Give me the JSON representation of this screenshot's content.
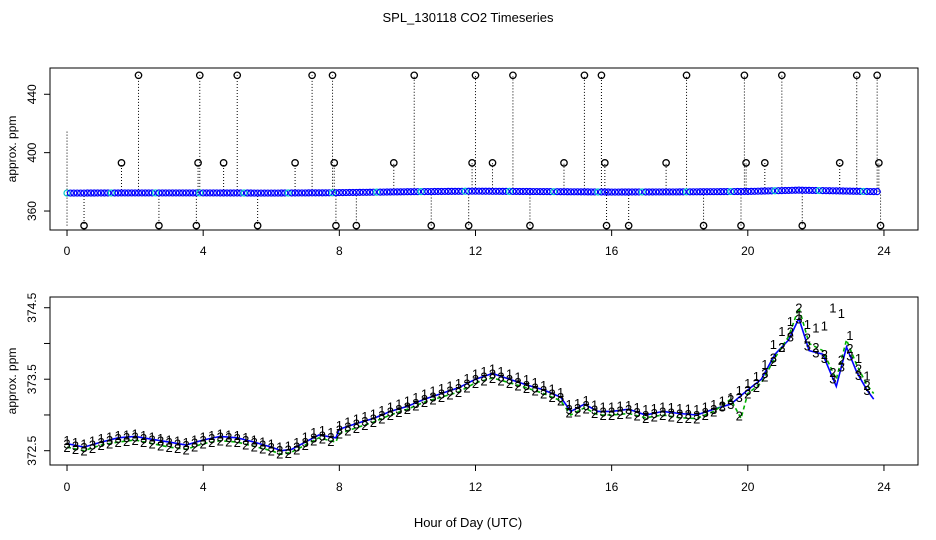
{
  "title": "SPL_130118  CO2 Timeseries",
  "xlabel": "Hour of Day (UTC)",
  "colors": {
    "frame": "#000000",
    "upper_series": "#0000ff",
    "upper_alt": "#00c8c8",
    "spike": "#000000",
    "s1": "#e00000",
    "s2": "#00b000",
    "s3": "#0000cc",
    "line3": "#0000ff",
    "line2": "#00b000"
  },
  "chart_data": [
    {
      "id": "upper",
      "type": "scatter",
      "ylabel": "approx. ppm",
      "xlim": [
        -0.5,
        25
      ],
      "ylim": [
        347,
        458
      ],
      "x_ticks": [
        0,
        4,
        8,
        12,
        16,
        20,
        24
      ],
      "y_ticks": [
        360,
        400,
        440
      ],
      "baseline": [
        {
          "x": 0,
          "y": 372.3
        },
        {
          "x": 2,
          "y": 372.4
        },
        {
          "x": 4,
          "y": 372.4
        },
        {
          "x": 6,
          "y": 372.3
        },
        {
          "x": 7.9,
          "y": 372.5
        },
        {
          "x": 8,
          "y": 372.6
        },
        {
          "x": 10,
          "y": 373.2
        },
        {
          "x": 12,
          "y": 373.6
        },
        {
          "x": 14,
          "y": 373.3
        },
        {
          "x": 16,
          "y": 373.0
        },
        {
          "x": 18,
          "y": 373.1
        },
        {
          "x": 20,
          "y": 373.4
        },
        {
          "x": 21.5,
          "y": 374.3
        },
        {
          "x": 23.7,
          "y": 373.3
        }
      ],
      "spikes_high": [
        2.1,
        3.9,
        5.0,
        7.2,
        7.8,
        10.2,
        12.0,
        13.1,
        15.2,
        15.7,
        18.2,
        19.9,
        21.0,
        23.2,
        23.8
      ],
      "spikes_mid": [
        1.6,
        3.85,
        4.6,
        6.7,
        7.85,
        9.6,
        11.9,
        12.5,
        14.6,
        15.8,
        17.6,
        19.95,
        20.5,
        22.7,
        23.85
      ],
      "spikes_low": [
        0.5,
        2.7,
        3.8,
        5.6,
        7.9,
        8.5,
        10.7,
        11.8,
        13.6,
        15.85,
        16.5,
        18.7,
        19.8,
        21.6,
        23.9
      ],
      "spike_values": {
        "high": 453,
        "mid": 393,
        "low": 350
      }
    },
    {
      "id": "lower",
      "type": "line",
      "ylabel": "approx. ppm",
      "xlim": [
        -0.5,
        25
      ],
      "ylim": [
        372.3,
        374.65
      ],
      "x_ticks": [
        0,
        4,
        8,
        12,
        16,
        20,
        24
      ],
      "y_ticks": [
        "372.5",
        "373.5",
        "374.5"
      ],
      "y_minor_ticks": [
        373,
        374
      ],
      "series": [
        {
          "name": "3",
          "points": [
            [
              0,
              372.6
            ],
            [
              0.5,
              372.55
            ],
            [
              1,
              372.62
            ],
            [
              1.5,
              372.68
            ],
            [
              2,
              372.7
            ],
            [
              2.5,
              372.66
            ],
            [
              3,
              372.62
            ],
            [
              3.5,
              372.58
            ],
            [
              4,
              372.65
            ],
            [
              4.5,
              372.7
            ],
            [
              5,
              372.68
            ],
            [
              5.5,
              372.62
            ],
            [
              6,
              372.55
            ],
            [
              6.3,
              372.5
            ],
            [
              6.6,
              372.52
            ],
            [
              7,
              372.62
            ],
            [
              7.4,
              372.72
            ],
            [
              7.9,
              372.68
            ],
            [
              8,
              372.8
            ],
            [
              8.5,
              372.88
            ],
            [
              9,
              372.95
            ],
            [
              9.5,
              373.05
            ],
            [
              10,
              373.12
            ],
            [
              10.5,
              373.22
            ],
            [
              11,
              373.3
            ],
            [
              11.5,
              373.38
            ],
            [
              12,
              373.5
            ],
            [
              12.5,
              373.58
            ],
            [
              13,
              373.5
            ],
            [
              13.5,
              373.42
            ],
            [
              14,
              373.35
            ],
            [
              14.5,
              373.25
            ],
            [
              14.8,
              373.05
            ],
            [
              15.2,
              373.15
            ],
            [
              15.6,
              373.05
            ],
            [
              16,
              373.05
            ],
            [
              16.5,
              373.08
            ],
            [
              17,
              373.0
            ],
            [
              17.5,
              373.05
            ],
            [
              18,
              373.02
            ],
            [
              18.5,
              373.0
            ],
            [
              19,
              373.08
            ],
            [
              19.5,
              373.15
            ],
            [
              20,
              373.35
            ],
            [
              20.4,
              373.5
            ],
            [
              20.8,
              373.85
            ],
            [
              21.2,
              374.05
            ],
            [
              21.5,
              374.35
            ],
            [
              21.8,
              373.9
            ],
            [
              22.2,
              373.85
            ],
            [
              22.6,
              373.4
            ],
            [
              22.9,
              373.95
            ],
            [
              23.2,
              373.6
            ],
            [
              23.5,
              373.35
            ],
            [
              23.7,
              373.22
            ]
          ]
        },
        {
          "name": "2",
          "points": [
            [
              0,
              372.55
            ],
            [
              0.5,
              372.5
            ],
            [
              1,
              372.58
            ],
            [
              1.5,
              372.62
            ],
            [
              2,
              372.65
            ],
            [
              2.5,
              372.6
            ],
            [
              3,
              372.55
            ],
            [
              3.5,
              372.52
            ],
            [
              4,
              372.6
            ],
            [
              4.5,
              372.64
            ],
            [
              5,
              372.62
            ],
            [
              5.5,
              372.56
            ],
            [
              6,
              372.5
            ],
            [
              6.3,
              372.45
            ],
            [
              6.6,
              372.48
            ],
            [
              7,
              372.58
            ],
            [
              7.4,
              372.68
            ],
            [
              7.9,
              372.62
            ],
            [
              8,
              372.74
            ],
            [
              8.5,
              372.82
            ],
            [
              9,
              372.9
            ],
            [
              9.5,
              373.0
            ],
            [
              10,
              373.08
            ],
            [
              10.5,
              373.18
            ],
            [
              11,
              373.25
            ],
            [
              11.5,
              373.32
            ],
            [
              12,
              373.45
            ],
            [
              12.5,
              373.52
            ],
            [
              13,
              373.45
            ],
            [
              13.5,
              373.38
            ],
            [
              14,
              373.3
            ],
            [
              14.5,
              373.2
            ],
            [
              14.8,
              373.0
            ],
            [
              15.2,
              373.1
            ],
            [
              15.6,
              373.0
            ],
            [
              16,
              373.0
            ],
            [
              16.5,
              373.02
            ],
            [
              17,
              372.96
            ],
            [
              17.5,
              373.0
            ],
            [
              18,
              372.96
            ],
            [
              18.5,
              372.95
            ],
            [
              19,
              373.05
            ],
            [
              19.5,
              373.22
            ],
            [
              19.8,
              372.95
            ],
            [
              20,
              373.3
            ],
            [
              20.4,
              373.45
            ],
            [
              20.8,
              373.8
            ],
            [
              21.2,
              374.1
            ],
            [
              21.5,
              374.5
            ],
            [
              21.8,
              374.0
            ],
            [
              22.2,
              373.9
            ],
            [
              22.6,
              373.5
            ],
            [
              22.9,
              374.05
            ],
            [
              23.2,
              373.7
            ],
            [
              23.5,
              373.42
            ],
            [
              23.7,
              373.3
            ]
          ]
        },
        {
          "name": "1",
          "points": [
            [
              0,
              372.65
            ],
            [
              0.5,
              372.6
            ],
            [
              1,
              372.68
            ],
            [
              1.5,
              372.72
            ],
            [
              2,
              372.74
            ],
            [
              2.5,
              372.7
            ],
            [
              3,
              372.66
            ],
            [
              3.5,
              372.62
            ],
            [
              4,
              372.7
            ],
            [
              4.5,
              372.74
            ],
            [
              5,
              372.72
            ],
            [
              5.5,
              372.66
            ],
            [
              6,
              372.6
            ],
            [
              6.3,
              372.55
            ],
            [
              6.6,
              372.58
            ],
            [
              7,
              372.7
            ],
            [
              7.4,
              372.8
            ],
            [
              7.9,
              372.75
            ],
            [
              8,
              372.86
            ],
            [
              8.5,
              372.95
            ],
            [
              9,
              373.02
            ],
            [
              9.5,
              373.12
            ],
            [
              10,
              373.2
            ],
            [
              10.5,
              373.3
            ],
            [
              11,
              373.38
            ],
            [
              11.5,
              373.45
            ],
            [
              12,
              373.58
            ],
            [
              12.5,
              373.65
            ],
            [
              13,
              373.58
            ],
            [
              13.5,
              373.5
            ],
            [
              14,
              373.42
            ],
            [
              14.5,
              373.32
            ],
            [
              14.8,
              373.12
            ],
            [
              15.2,
              373.22
            ],
            [
              15.6,
              373.12
            ],
            [
              16,
              373.12
            ],
            [
              16.5,
              373.14
            ],
            [
              17,
              373.08
            ],
            [
              17.5,
              373.12
            ],
            [
              18,
              373.1
            ],
            [
              18.5,
              373.08
            ],
            [
              19,
              373.15
            ],
            [
              19.5,
              373.25
            ],
            [
              20,
              373.45
            ],
            [
              20.4,
              373.6
            ],
            [
              20.8,
              374.05
            ],
            [
              21.2,
              374.3
            ],
            [
              21.5,
              374.4
            ],
            [
              21.8,
              374.25
            ],
            [
              22.2,
              374.2
            ],
            [
              22.6,
              374.6
            ],
            [
              22.9,
              374.25
            ],
            [
              23.2,
              373.85
            ],
            [
              23.5,
              373.55
            ],
            [
              23.7,
              373.4
            ]
          ]
        }
      ]
    }
  ]
}
